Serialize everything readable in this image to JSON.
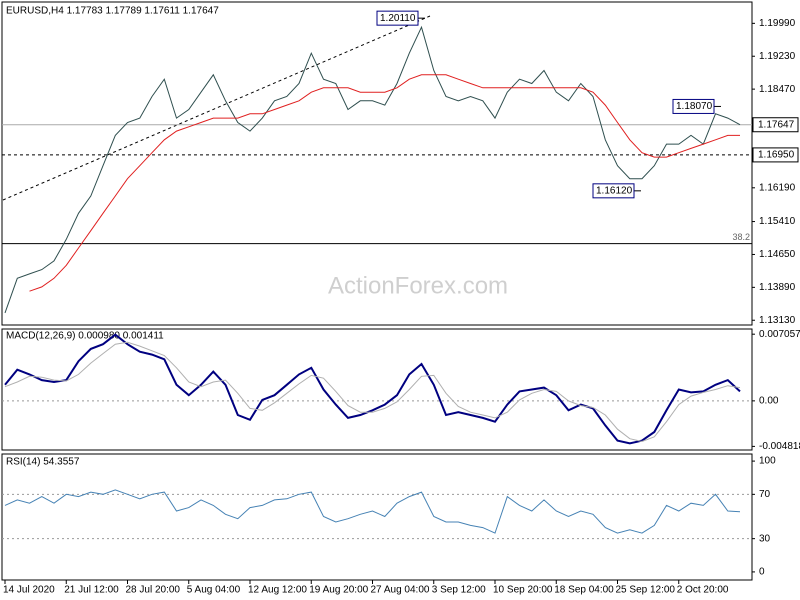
{
  "chart_data": [
    {
      "type": "line",
      "title": "EURUSD,H4 1.17783 1.17789 1.17611 1.17647",
      "watermark": "ActionForex.com",
      "categories": [
        "14 Jul 2020",
        null,
        null,
        null,
        null,
        "21 Jul 12:00",
        null,
        null,
        null,
        null,
        "28 Jul 20:00",
        null,
        null,
        null,
        null,
        "5 Aug 04:00",
        null,
        null,
        null,
        null,
        "12 Aug 12:00",
        null,
        null,
        null,
        null,
        "19 Aug 20:00",
        null,
        null,
        null,
        null,
        "27 Aug 04:00",
        null,
        null,
        null,
        null,
        "3 Sep 12:00",
        null,
        null,
        null,
        null,
        "10 Sep 20:00",
        null,
        null,
        null,
        null,
        "18 Sep 04:00",
        null,
        null,
        null,
        null,
        "25 Sep 12:00",
        null,
        null,
        null,
        null,
        "2 Oct 20:00",
        null,
        null,
        null,
        null,
        null
      ],
      "series": [
        {
          "name": "EURUSD",
          "color": "#2f4f4f",
          "values": [
            1.133,
            1.141,
            1.142,
            1.143,
            1.145,
            1.15,
            1.156,
            1.16,
            1.167,
            1.174,
            1.177,
            1.178,
            1.183,
            1.187,
            1.178,
            1.18,
            1.184,
            1.188,
            1.182,
            1.177,
            1.175,
            1.178,
            1.182,
            1.183,
            1.186,
            1.193,
            1.187,
            1.186,
            1.18,
            1.182,
            1.182,
            1.181,
            1.186,
            1.193,
            1.199,
            1.189,
            1.183,
            1.182,
            1.183,
            1.182,
            1.178,
            1.184,
            1.187,
            1.186,
            1.189,
            1.184,
            1.182,
            1.186,
            1.183,
            1.173,
            1.167,
            1.164,
            1.164,
            1.167,
            1.172,
            1.172,
            1.174,
            1.172,
            1.179,
            1.178,
            1.17647
          ]
        },
        {
          "name": "MA",
          "color": "#e02020",
          "values": [
            null,
            null,
            1.138,
            1.139,
            1.141,
            1.144,
            1.148,
            1.152,
            1.156,
            1.16,
            1.164,
            1.167,
            1.17,
            1.173,
            1.175,
            1.176,
            1.177,
            1.178,
            1.178,
            1.178,
            1.179,
            1.179,
            1.18,
            1.181,
            1.182,
            1.184,
            1.185,
            1.185,
            1.185,
            1.184,
            1.184,
            1.184,
            1.185,
            1.187,
            1.188,
            1.188,
            1.188,
            1.187,
            1.186,
            1.185,
            1.185,
            1.185,
            1.185,
            1.185,
            1.185,
            1.185,
            1.185,
            1.185,
            1.184,
            1.181,
            1.177,
            1.173,
            1.17,
            1.169,
            1.169,
            1.17,
            1.171,
            1.172,
            1.173,
            1.174,
            1.174
          ]
        }
      ],
      "ylim": [
        1.1302,
        1.2046
      ],
      "yticks": [
        {
          "value": 1.1999,
          "label": "1.19990"
        },
        {
          "value": 1.1923,
          "label": "1.19230"
        },
        {
          "value": 1.1847,
          "label": "1.18470"
        },
        {
          "value": 1.1771,
          "label": "1.17710"
        },
        {
          "value": 1.1695,
          "label": "1.16950"
        },
        {
          "value": 1.1619,
          "label": "1.16190"
        },
        {
          "value": 1.1541,
          "label": "1.15410"
        },
        {
          "value": 1.1465,
          "label": "1.14650"
        },
        {
          "value": 1.1389,
          "label": "1.13890"
        },
        {
          "value": 1.1313,
          "label": "1.13130"
        }
      ],
      "annotations": [
        {
          "value": 1.2011,
          "label": "1.20110"
        },
        {
          "value": 1.1807,
          "label": "1.18070"
        },
        {
          "value": 1.1612,
          "label": "1.16120"
        }
      ],
      "current_price": {
        "value": 1.17647,
        "label": "1.17647"
      },
      "support": {
        "value": 1.1695,
        "label": "1.16950"
      },
      "fib": {
        "value": 1.149,
        "label": "38.2"
      }
    },
    {
      "type": "line",
      "title": "MACD(12,26,9) 0.000980 0.001411",
      "series": [
        {
          "name": "MACD",
          "color": "#000080",
          "values": [
            0.0017,
            0.0033,
            0.0028,
            0.0022,
            0.002,
            0.0022,
            0.0042,
            0.0055,
            0.006,
            0.007,
            0.006,
            0.0052,
            0.0049,
            0.0044,
            0.0017,
            0.0006,
            0.0017,
            0.0031,
            0.0017,
            -0.0015,
            -0.002,
            0.0001,
            0.0006,
            0.0017,
            0.0028,
            0.0035,
            0.0012,
            -0.0004,
            -0.0018,
            -0.0015,
            -0.001,
            -0.0004,
            0.0006,
            0.0028,
            0.0039,
            0.0017,
            -0.0015,
            -0.0012,
            -0.0015,
            -0.0018,
            -0.0022,
            -0.0004,
            0.001,
            0.0012,
            0.0014,
            0.0006,
            -0.001,
            -0.0004,
            -0.0008,
            -0.0026,
            -0.0042,
            -0.0045,
            -0.0042,
            -0.0033,
            -0.001,
            0.0012,
            0.0009,
            0.001,
            0.0017,
            0.0022,
            0.001
          ]
        },
        {
          "name": "Signal",
          "color": "#b0b0b0",
          "values": [
            0.0015,
            0.002,
            0.0026,
            0.0025,
            0.0022,
            0.0021,
            0.0028,
            0.004,
            0.005,
            0.006,
            0.0062,
            0.0058,
            0.0053,
            0.0048,
            0.0035,
            0.002,
            0.0015,
            0.002,
            0.0022,
            0.0008,
            -0.0008,
            -0.001,
            -0.0002,
            0.0008,
            0.0018,
            0.0027,
            0.0024,
            0.001,
            -0.0005,
            -0.0012,
            -0.0012,
            -0.0008,
            -0.0001,
            0.0012,
            0.0026,
            0.0027,
            0.0008,
            -0.0006,
            -0.0012,
            -0.0015,
            -0.0018,
            -0.0012,
            0.0001,
            0.0008,
            0.0012,
            0.001,
            0.0,
            -0.0005,
            -0.0007,
            -0.0015,
            -0.003,
            -0.004,
            -0.0043,
            -0.0038,
            -0.0022,
            -0.0004,
            0.0005,
            0.0009,
            0.0012,
            0.0016,
            0.0014
          ]
        }
      ],
      "ylim": [
        -0.0052,
        0.0075
      ],
      "yticks": [
        0.007057,
        {
          "value": 0,
          "label": "0.00"
        },
        -0.004818
      ]
    },
    {
      "type": "line",
      "title": "RSI(14) 54.3557",
      "series": [
        {
          "name": "RSI",
          "color": "#4682b4",
          "values": [
            60,
            65,
            62,
            68,
            62,
            70,
            68,
            72,
            70,
            74,
            70,
            66,
            70,
            72,
            55,
            58,
            65,
            60,
            52,
            48,
            58,
            60,
            65,
            66,
            70,
            72,
            50,
            45,
            48,
            52,
            55,
            50,
            62,
            68,
            72,
            50,
            45,
            45,
            42,
            40,
            35,
            68,
            60,
            55,
            65,
            55,
            50,
            55,
            52,
            40,
            35,
            38,
            35,
            42,
            60,
            55,
            62,
            60,
            70,
            55,
            54.3557
          ]
        }
      ],
      "ylim": [
        -7.3,
        105.5
      ],
      "yticks": [
        100,
        70,
        30,
        0
      ],
      "levels": [
        70,
        30
      ]
    }
  ]
}
